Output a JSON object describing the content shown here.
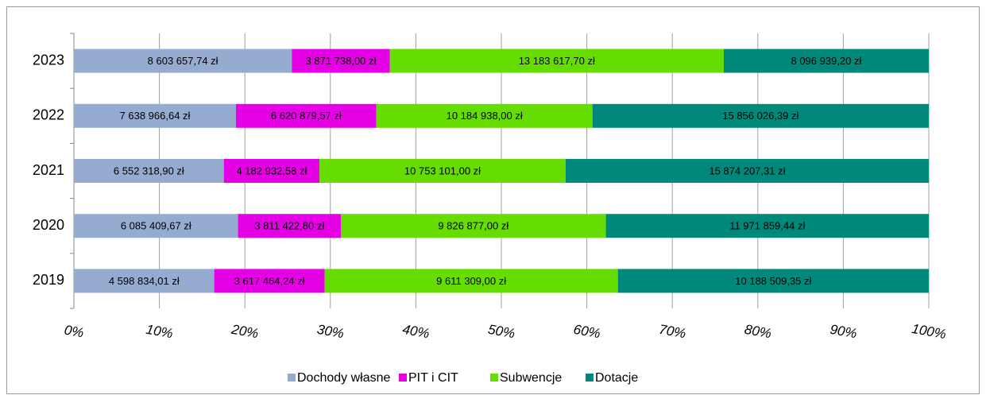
{
  "chart_data": {
    "type": "bar",
    "orientation": "horizontal",
    "stacked": "percent",
    "categories": [
      "2019",
      "2020",
      "2021",
      "2022",
      "2023"
    ],
    "series": [
      {
        "name": "Dochody własne",
        "color": "#95abd0",
        "values": [
          4598834.01,
          6085409.67,
          6552318.9,
          7638966.64,
          8603657.74
        ],
        "value_labels": [
          "4 598 834,01 zł",
          "6 085 409,67 zł",
          "6 552 318,90 zł",
          "7 638 966,64 zł",
          "8 603 657,74 zł"
        ]
      },
      {
        "name": "PIT i CIT",
        "color": "#e600e6",
        "values": [
          3617464.24,
          3811422.8,
          4182932.58,
          6620879.57,
          3871738.0
        ],
        "value_labels": [
          "3 617 464,24 zł",
          "3 811 422,80 zł",
          "4 182 932,58 zł",
          "6 620 879,57 zł",
          "3 871 738,00 zł"
        ]
      },
      {
        "name": "Subwencje",
        "color": "#66dd00",
        "values": [
          9611309.0,
          9826877.0,
          10753101.0,
          10184938.0,
          13183617.7
        ],
        "value_labels": [
          "9 611 309,00 zł",
          "9 826 877,00 zł",
          "10 753 101,00 zł",
          "10 184 938,00 zł",
          "13 183 617,70 zł"
        ]
      },
      {
        "name": "Dotacje",
        "color": "#00897a",
        "values": [
          10188509.35,
          11971859.44,
          15874207.31,
          15856026.39,
          8096939.2
        ],
        "value_labels": [
          "10 188 509,35 zł",
          "11 971 859,44 zł",
          "15 874 207,31 zł",
          "15 856 026,39 zł",
          "8 096 939,20 zł"
        ]
      }
    ],
    "xlim": [
      0,
      100
    ],
    "xticks": [
      {
        "value": 0,
        "label": "0%"
      },
      {
        "value": 10,
        "label": "10%"
      },
      {
        "value": 20,
        "label": "20%"
      },
      {
        "value": 30,
        "label": "30%"
      },
      {
        "value": 40,
        "label": "40%"
      },
      {
        "value": 50,
        "label": "50%"
      },
      {
        "value": 60,
        "label": "60%"
      },
      {
        "value": 70,
        "label": "70%"
      },
      {
        "value": 80,
        "label": "80%"
      },
      {
        "value": 90,
        "label": "90%"
      },
      {
        "value": 100,
        "label": "100%"
      }
    ],
    "grid": true,
    "legend": "bottom"
  }
}
